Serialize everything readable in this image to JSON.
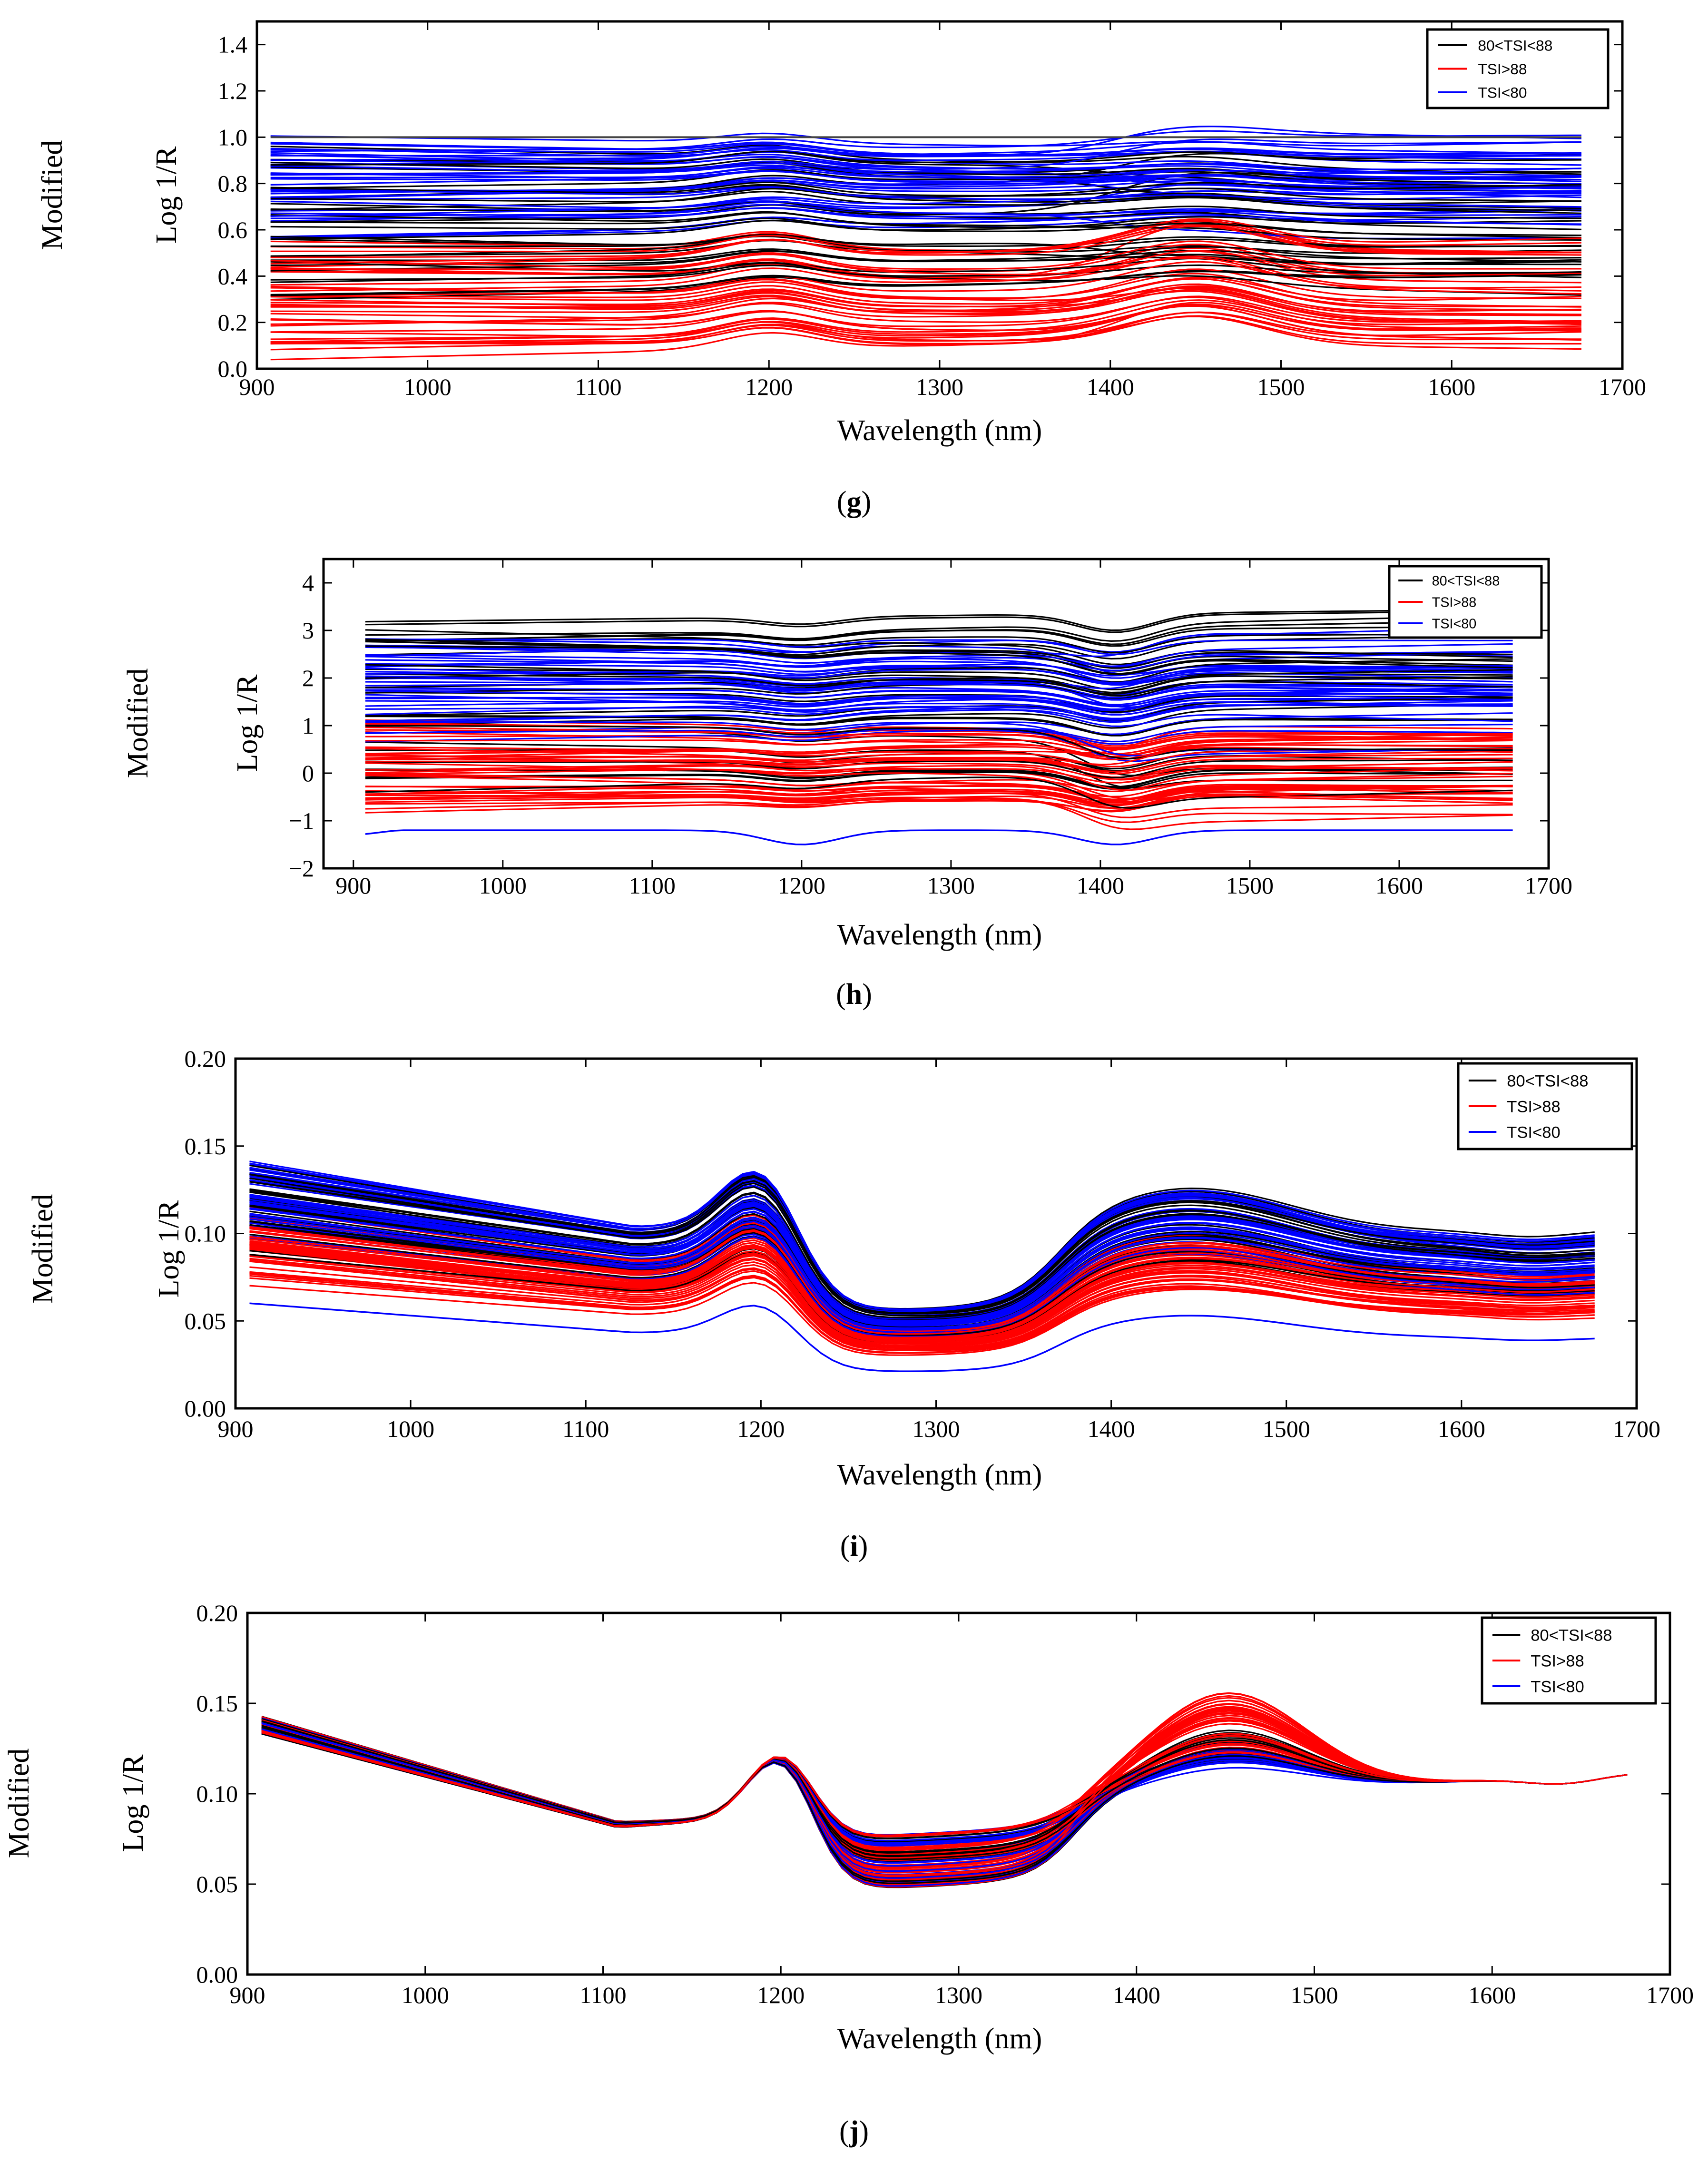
{
  "figure": {
    "panels": [
      "g",
      "h",
      "i",
      "j"
    ]
  },
  "chart_data": [
    {
      "panel": "g",
      "caption": "g",
      "type": "line",
      "ylabel": "Log 1/R",
      "ylabel_outer": "Modified",
      "xlabel": "Wavelength (nm)",
      "xlim": [
        900,
        1700
      ],
      "ylim": [
        0.0,
        1.5
      ],
      "xticks": [
        "900",
        "1000",
        "1100",
        "1200",
        "1300",
        "1400",
        "1500",
        "1600",
        "1700"
      ],
      "yticks": [
        "0.0",
        "0.2",
        "0.4",
        "0.6",
        "0.8",
        "1.0",
        "1.2",
        "1.4"
      ],
      "legend": {
        "position": "top-right",
        "entries": [
          {
            "name": "80<TSI<88",
            "color": "#000000"
          },
          {
            "name": "TSI>88",
            "color": "#ff0000"
          },
          {
            "name": "TSI<80",
            "color": "#0000ff"
          }
        ]
      },
      "x_range": [
        908,
        1676
      ],
      "series": [
        {
          "name": "80<TSI<88",
          "color": "#000000",
          "count": 34,
          "level_range": [
            0.35,
            0.9
          ],
          "features": [
            {
              "center": 1200,
              "width": 28,
              "amp": 0.05
            },
            {
              "center": 1450,
              "width": 40,
              "amp": 0.04
            }
          ]
        },
        {
          "name": "TSI>88",
          "color": "#ff0000",
          "count": 40,
          "level_range": [
            0.1,
            0.52
          ],
          "features": [
            {
              "center": 1200,
              "width": 28,
              "amp": 0.07
            },
            {
              "center": 1450,
              "width": 40,
              "amp": 0.12
            }
          ]
        },
        {
          "name": "TSI<80",
          "color": "#0000ff",
          "count": 40,
          "level_range": [
            0.55,
            0.97
          ],
          "features": [
            {
              "center": 1200,
              "width": 28,
              "amp": 0.04
            },
            {
              "center": 1450,
              "width": 40,
              "amp": 0.03
            }
          ]
        }
      ],
      "reference_line": {
        "y": 1.0,
        "color": "#444444"
      }
    },
    {
      "panel": "h",
      "caption": "h",
      "type": "line",
      "ylabel": "Log 1/R",
      "ylabel_outer": "Modified",
      "xlabel": "Wavelength (nm)",
      "xlim": [
        880,
        1700
      ],
      "ylim": [
        -2,
        4.5
      ],
      "xticks": [
        "900",
        "1000",
        "1100",
        "1200",
        "1300",
        "1400",
        "1500",
        "1600",
        "1700"
      ],
      "yticks": [
        "−2",
        "−1",
        "0",
        "1",
        "2",
        "3",
        "4"
      ],
      "legend": {
        "position": "top-right",
        "entries": [
          {
            "name": "80<TSI<88",
            "color": "#000000"
          },
          {
            "name": "TSI>88",
            "color": "#ff0000"
          },
          {
            "name": "TSI<80",
            "color": "#0000ff"
          }
        ]
      },
      "x_range": [
        908,
        1676
      ],
      "series": [
        {
          "name": "80<TSI<88",
          "color": "#000000",
          "count": 34,
          "level_range": [
            -0.3,
            3.4
          ],
          "features": [
            {
              "center": 1200,
              "width": 25,
              "amp": -0.15
            },
            {
              "center": 1410,
              "width": 25,
              "amp": -0.35
            }
          ]
        },
        {
          "name": "TSI>88",
          "color": "#ff0000",
          "count": 40,
          "level_range": [
            -0.6,
            1.0
          ],
          "features": [
            {
              "center": 1200,
              "width": 25,
              "amp": -0.1
            },
            {
              "center": 1410,
              "width": 25,
              "amp": -0.3
            }
          ]
        },
        {
          "name": "TSI<80",
          "color": "#0000ff",
          "count": 40,
          "level_range": [
            0.8,
            2.8
          ],
          "features": [
            {
              "center": 1200,
              "width": 25,
              "amp": -0.15
            },
            {
              "center": 1410,
              "width": 25,
              "amp": -0.3
            }
          ]
        }
      ],
      "outlier": {
        "color": "#0000ff",
        "level": -1.2,
        "features": [
          {
            "center": 1200,
            "width": 25,
            "amp": -0.3
          },
          {
            "center": 1410,
            "width": 25,
            "amp": -0.3
          }
        ]
      }
    },
    {
      "panel": "i",
      "caption": "i",
      "type": "line",
      "ylabel": "Log 1/R",
      "ylabel_outer": "Modified",
      "xlabel": "Wavelength (nm)",
      "xlim": [
        900,
        1700
      ],
      "ylim": [
        0.0,
        0.2
      ],
      "xticks": [
        "900",
        "1000",
        "1100",
        "1200",
        "1300",
        "1400",
        "1500",
        "1600",
        "1700"
      ],
      "yticks": [
        "0.00",
        "0.05",
        "0.10",
        "0.15",
        "0.20"
      ],
      "legend": {
        "position": "top-right",
        "entries": [
          {
            "name": "80<TSI<88",
            "color": "#000000"
          },
          {
            "name": "TSI>88",
            "color": "#ff0000"
          },
          {
            "name": "TSI<80",
            "color": "#0000ff"
          }
        ]
      },
      "x_range": [
        908,
        1676
      ],
      "series": [
        {
          "name": "80<TSI<88",
          "color": "#000000",
          "count": 34,
          "shape": "ms",
          "scale_range": [
            0.78,
            1.18
          ]
        },
        {
          "name": "TSI>88",
          "color": "#ff0000",
          "count": 45,
          "shape": "ms",
          "scale_range": [
            0.62,
            0.95
          ]
        },
        {
          "name": "TSI<80",
          "color": "#0000ff",
          "count": 40,
          "shape": "ms",
          "scale_range": [
            0.85,
            1.18
          ]
        }
      ],
      "outlier": {
        "color": "#0000ff",
        "shape": "ms",
        "scale": 0.56
      }
    },
    {
      "panel": "j",
      "caption": "j",
      "type": "line",
      "ylabel": "Log 1/R",
      "ylabel_outer": "Modified",
      "xlabel": "Wavelength (nm)",
      "xlim": [
        900,
        1700
      ],
      "ylim": [
        0.0,
        0.2
      ],
      "xticks": [
        "900",
        "1000",
        "1100",
        "1200",
        "1300",
        "1400",
        "1500",
        "1600",
        "1700"
      ],
      "yticks": [
        "0.00",
        "0.05",
        "0.10",
        "0.15",
        "0.20"
      ],
      "legend": {
        "position": "top-right",
        "entries": [
          {
            "name": "80<TSI<88",
            "color": "#000000"
          },
          {
            "name": "TSI>88",
            "color": "#ff0000"
          },
          {
            "name": "TSI<80",
            "color": "#0000ff"
          }
        ]
      },
      "x_range": [
        908,
        1676
      ],
      "series": [
        {
          "name": "80<TSI<88",
          "color": "#000000",
          "count": 30,
          "shape": "norm",
          "peak_range": [
            0.108,
            0.125
          ]
        },
        {
          "name": "TSI>88",
          "color": "#ff0000",
          "count": 45,
          "shape": "norm",
          "peak_range": [
            0.11,
            0.146
          ]
        },
        {
          "name": "TSI<80",
          "color": "#0000ff",
          "count": 20,
          "shape": "norm",
          "peak_range": [
            0.104,
            0.118
          ]
        }
      ]
    }
  ]
}
